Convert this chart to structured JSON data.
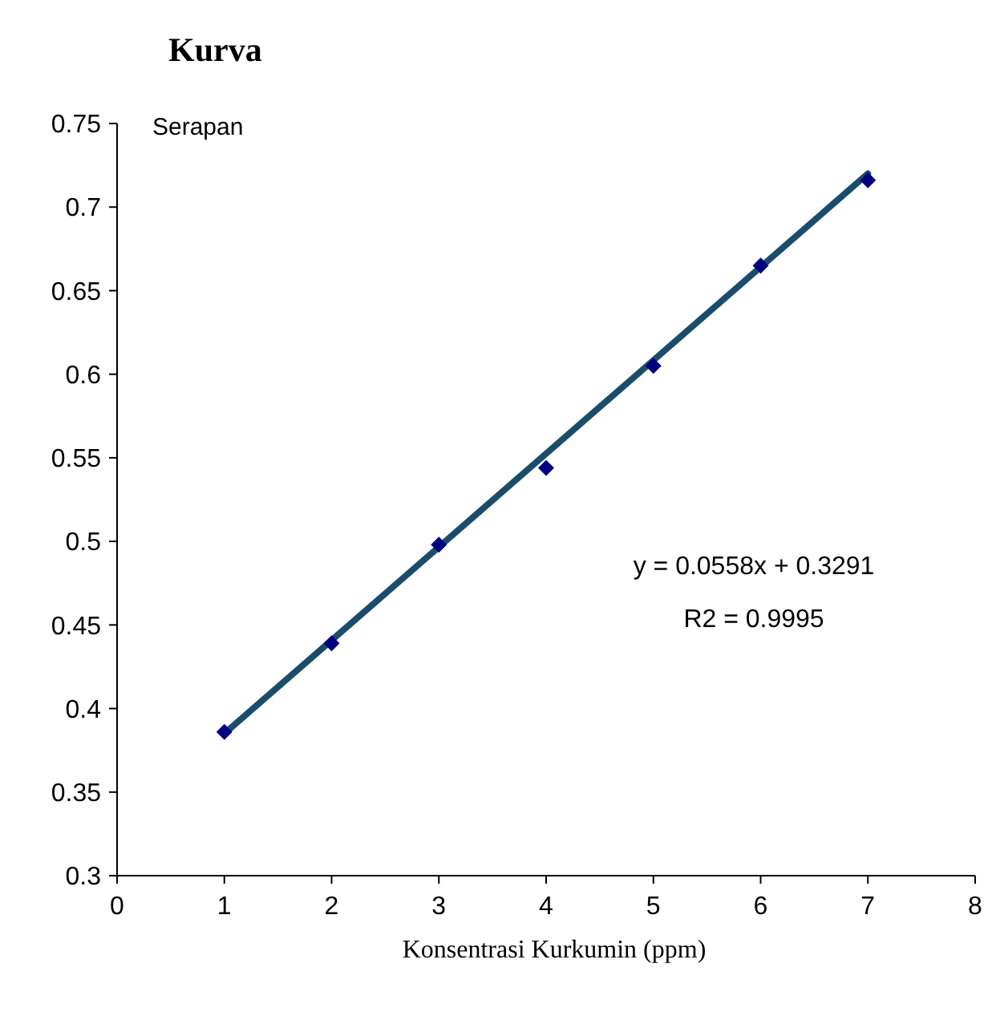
{
  "chart_data": {
    "type": "scatter",
    "title": "Kurva",
    "xlabel": "Konsentrasi Kurkumin (ppm)",
    "ylabel": "Serapan",
    "annotations": [
      "y = 0.0558x + 0.3291",
      "R2 = 0.9995"
    ],
    "series": [
      {
        "type": "line",
        "color": "#1b4d6b",
        "x": [
          1,
          7
        ],
        "values": [
          0.385,
          0.72
        ],
        "marker": "none"
      },
      {
        "color": "#000080",
        "x": [
          1,
          2,
          3,
          4,
          5,
          6,
          7
        ],
        "values": [
          0.386,
          0.439,
          0.498,
          0.544,
          0.605,
          0.665,
          0.716
        ],
        "marker": "diamond"
      }
    ],
    "xlim": [
      0,
      8
    ],
    "xticks": [
      0,
      1,
      2,
      3,
      4,
      5,
      6,
      7,
      8
    ],
    "ylim": [
      0.3,
      0.75
    ],
    "yticks": [
      0.3,
      0.35,
      0.4,
      0.45,
      0.5,
      0.55,
      0.6,
      0.65,
      0.7,
      0.75
    ],
    "grid": false
  }
}
